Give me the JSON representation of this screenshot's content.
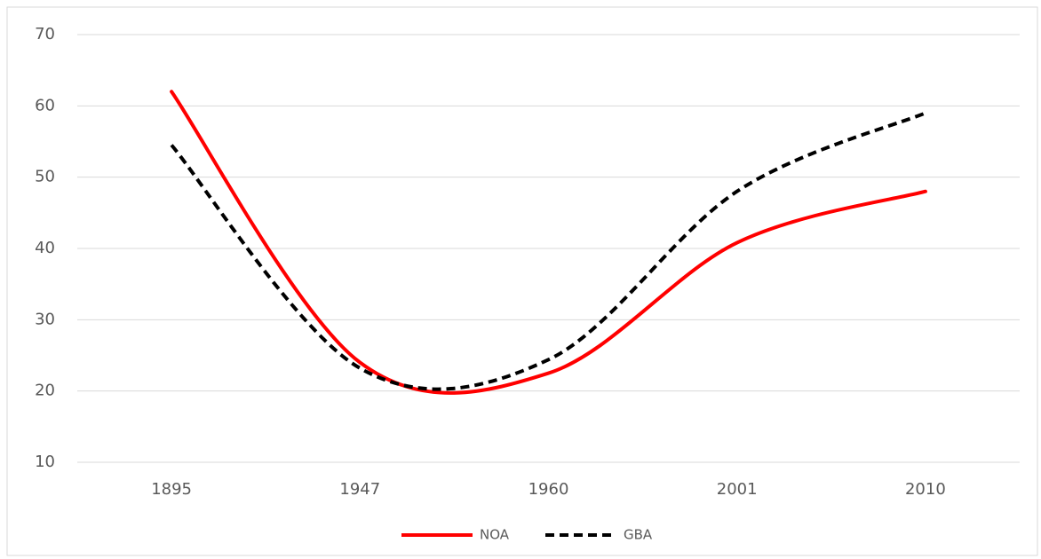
{
  "chart_data": {
    "type": "line",
    "categories": [
      "1895",
      "1947",
      "1960",
      "2001",
      "2010"
    ],
    "series": [
      {
        "name": "NOA",
        "color": "#ff0000",
        "dash": "solid",
        "values": [
          62,
          24,
          22.5,
          40.8,
          48
        ]
      },
      {
        "name": "GBA",
        "color": "#000000",
        "dash": "dashed",
        "values": [
          54.5,
          23.2,
          24.4,
          48,
          59
        ]
      }
    ],
    "ylim": [
      10,
      70
    ],
    "yticks": [
      10,
      20,
      30,
      40,
      50,
      60,
      70
    ],
    "grid": true,
    "smooth": true,
    "legend": "bottom"
  }
}
